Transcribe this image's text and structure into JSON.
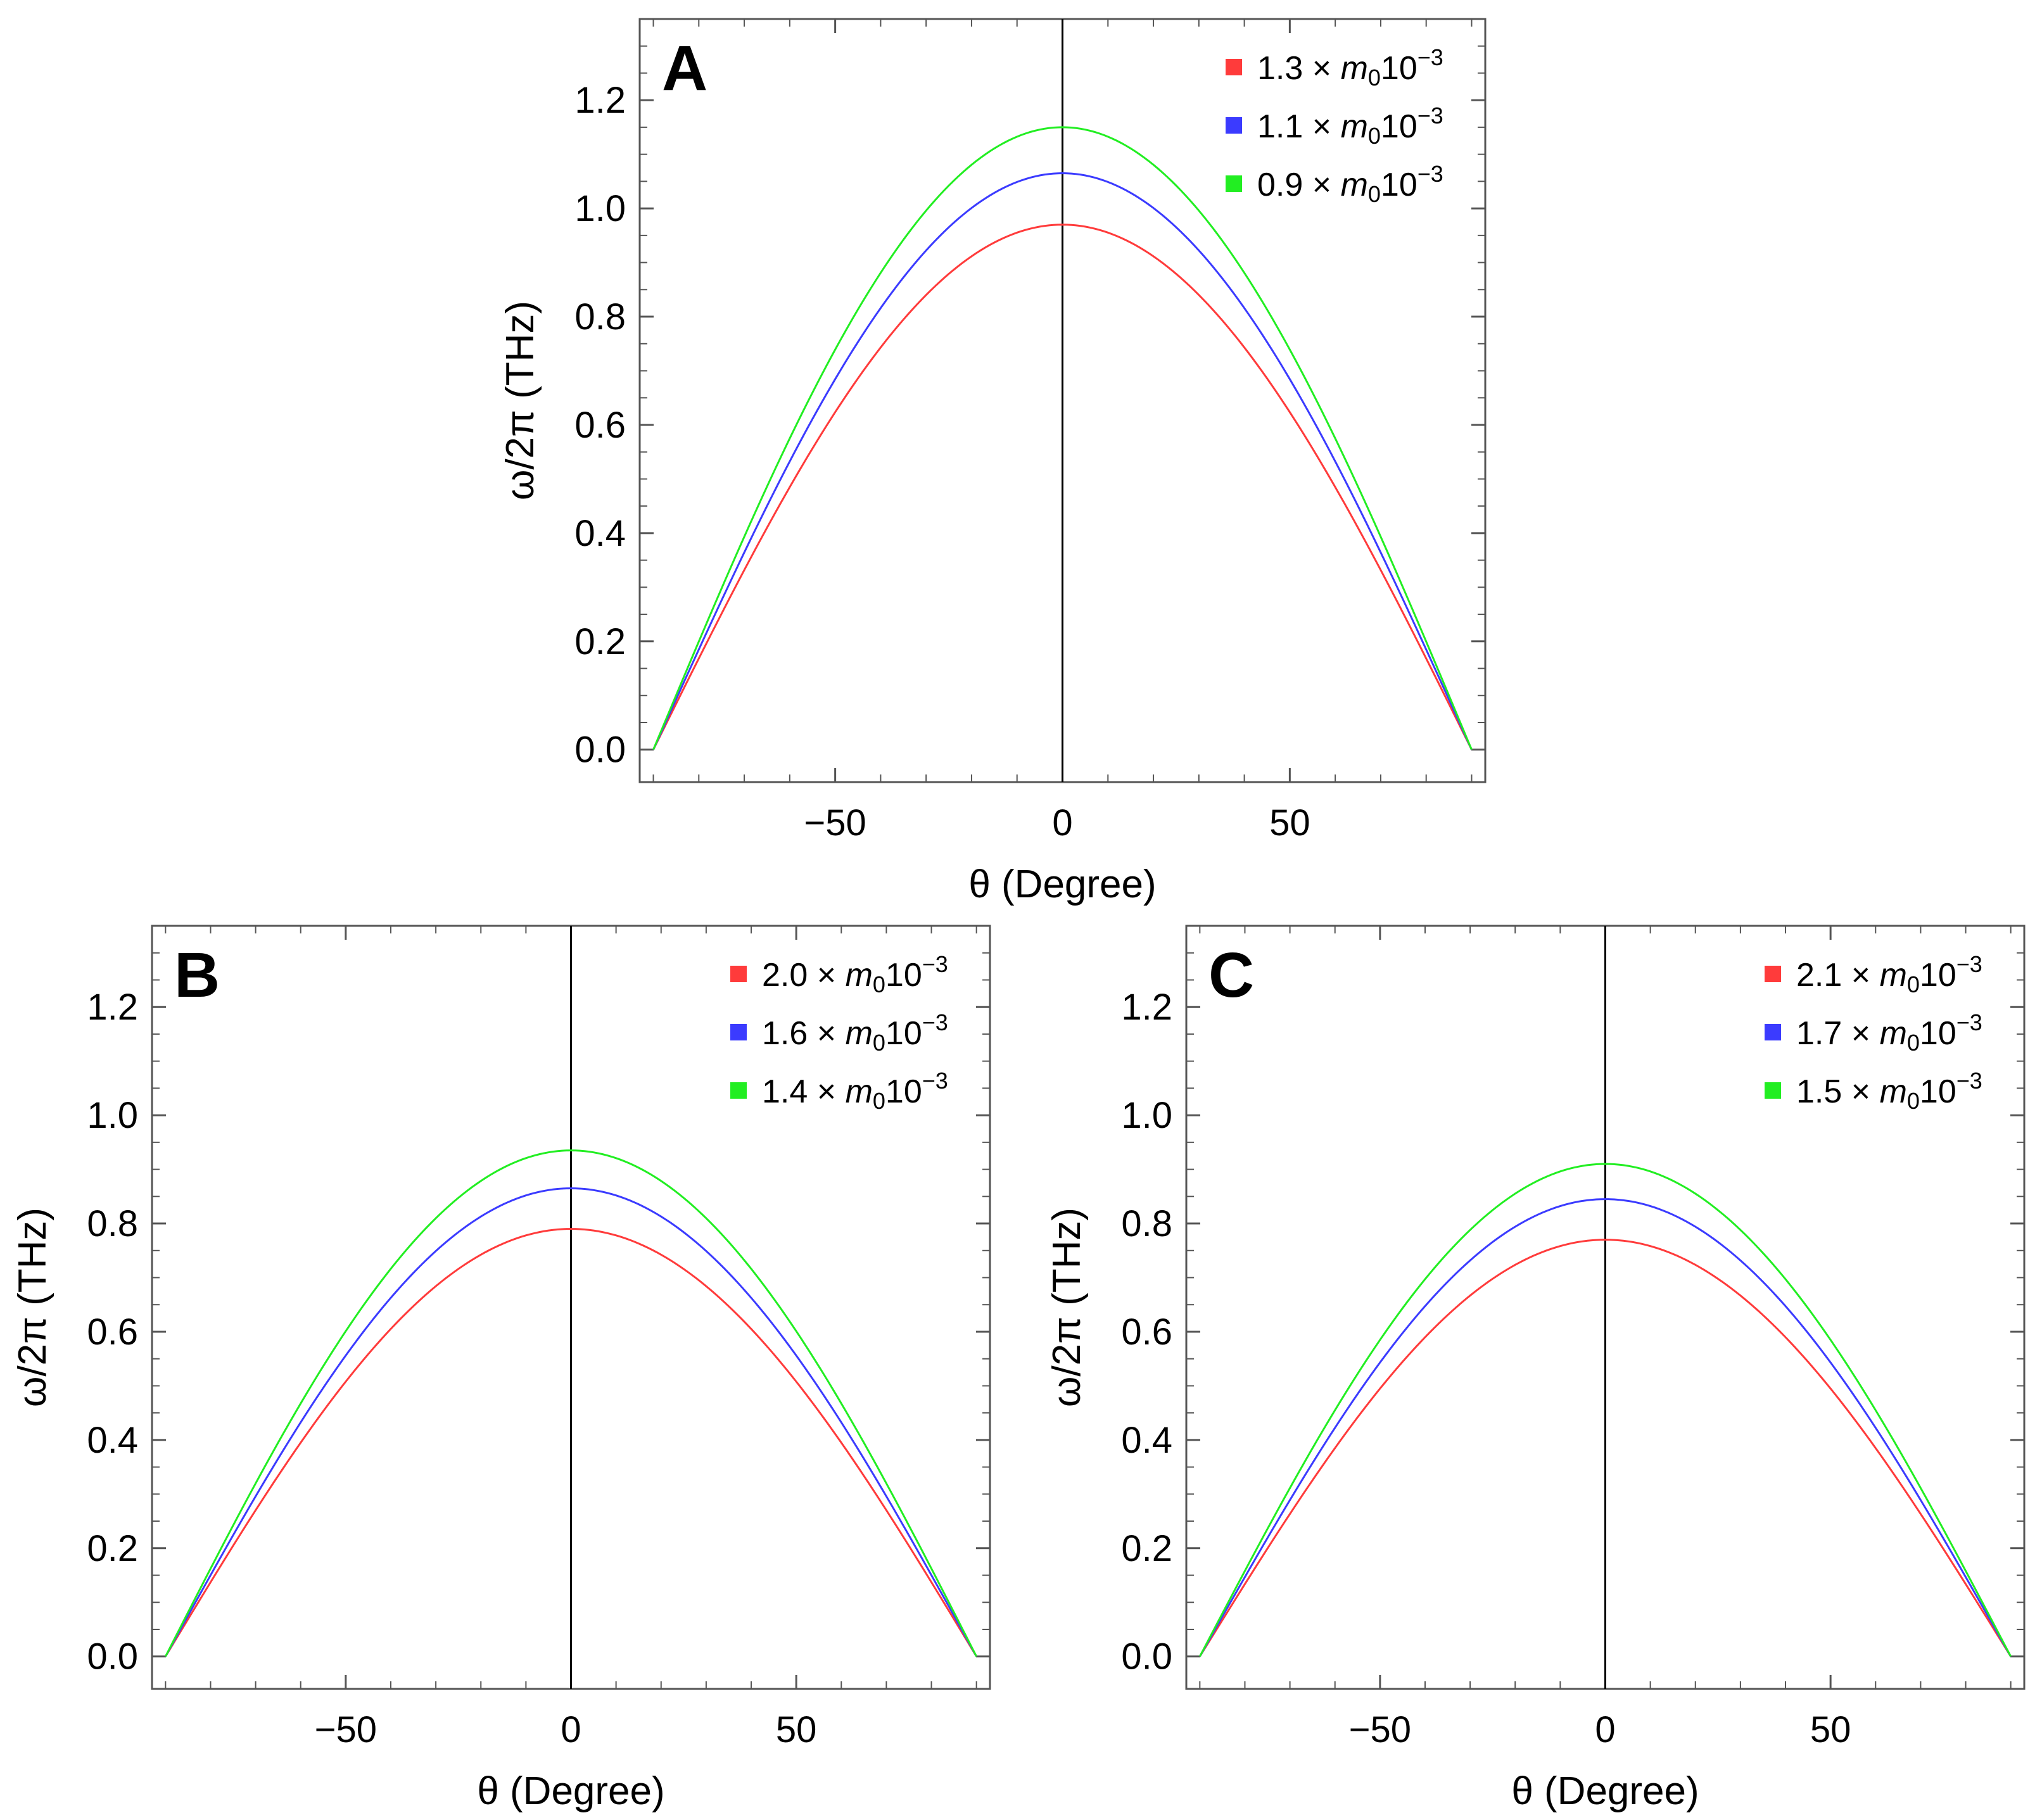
{
  "chart_data": [
    {
      "type": "line",
      "panel": "A",
      "xlabel": "θ (Degree)",
      "ylabel": "ω/2π (THz)",
      "xlim": [
        -93,
        93
      ],
      "ylim": [
        -0.06,
        1.35
      ],
      "xticks": [
        {
          "value": -50,
          "label": "−50"
        },
        {
          "value": 0,
          "label": "0"
        },
        {
          "value": 50,
          "label": "50"
        }
      ],
      "yticks": [
        {
          "value": 0.0,
          "label": "0.0"
        },
        {
          "value": 0.2,
          "label": "0.2"
        },
        {
          "value": 0.4,
          "label": "0.4"
        },
        {
          "value": 0.6,
          "label": "0.6"
        },
        {
          "value": 0.8,
          "label": "0.8"
        },
        {
          "value": 1.0,
          "label": "1.0"
        },
        {
          "value": 1.2,
          "label": "1.2"
        }
      ],
      "x_domain": [
        -90,
        90
      ],
      "series": [
        {
          "name": "1.3 × m₀10⁻³",
          "coef": "1.3",
          "color": "#ff3b3b",
          "peak": 0.97
        },
        {
          "name": "1.1 × m₀10⁻³",
          "coef": "1.1",
          "color": "#3b3bff",
          "peak": 1.065
        },
        {
          "name": "0.9 × m₀10⁻³",
          "coef": "0.9",
          "color": "#22ee22",
          "peak": 1.15
        }
      ]
    },
    {
      "type": "line",
      "panel": "B",
      "xlabel": "θ (Degree)",
      "ylabel": "ω/2π (THz)",
      "xlim": [
        -93,
        93
      ],
      "ylim": [
        -0.06,
        1.35
      ],
      "xticks": [
        {
          "value": -50,
          "label": "−50"
        },
        {
          "value": 0,
          "label": "0"
        },
        {
          "value": 50,
          "label": "50"
        }
      ],
      "yticks": [
        {
          "value": 0.0,
          "label": "0.0"
        },
        {
          "value": 0.2,
          "label": "0.2"
        },
        {
          "value": 0.4,
          "label": "0.4"
        },
        {
          "value": 0.6,
          "label": "0.6"
        },
        {
          "value": 0.8,
          "label": "0.8"
        },
        {
          "value": 1.0,
          "label": "1.0"
        },
        {
          "value": 1.2,
          "label": "1.2"
        }
      ],
      "x_domain": [
        -90,
        90
      ],
      "series": [
        {
          "name": "2.0 × m₀10⁻³",
          "coef": "2.0",
          "color": "#ff3b3b",
          "peak": 0.79
        },
        {
          "name": "1.6 × m₀10⁻³",
          "coef": "1.6",
          "color": "#3b3bff",
          "peak": 0.865
        },
        {
          "name": "1.4 × m₀10⁻³",
          "coef": "1.4",
          "color": "#22ee22",
          "peak": 0.935
        }
      ]
    },
    {
      "type": "line",
      "panel": "C",
      "xlabel": "θ (Degree)",
      "ylabel": "ω/2π (THz)",
      "xlim": [
        -93,
        93
      ],
      "ylim": [
        -0.06,
        1.35
      ],
      "xticks": [
        {
          "value": -50,
          "label": "−50"
        },
        {
          "value": 0,
          "label": "0"
        },
        {
          "value": 50,
          "label": "50"
        }
      ],
      "yticks": [
        {
          "value": 0.0,
          "label": "0.0"
        },
        {
          "value": 0.2,
          "label": "0.2"
        },
        {
          "value": 0.4,
          "label": "0.4"
        },
        {
          "value": 0.6,
          "label": "0.6"
        },
        {
          "value": 0.8,
          "label": "0.8"
        },
        {
          "value": 1.0,
          "label": "1.0"
        },
        {
          "value": 1.2,
          "label": "1.2"
        }
      ],
      "x_domain": [
        -90,
        90
      ],
      "series": [
        {
          "name": "2.1 × m₀10⁻³",
          "coef": "2.1",
          "color": "#ff3b3b",
          "peak": 0.77
        },
        {
          "name": "1.7 × m₀10⁻³",
          "coef": "1.7",
          "color": "#3b3bff",
          "peak": 0.845
        },
        {
          "name": "1.5 × m₀10⁻³",
          "coef": "1.5",
          "color": "#22ee22",
          "peak": 0.91
        }
      ]
    }
  ]
}
